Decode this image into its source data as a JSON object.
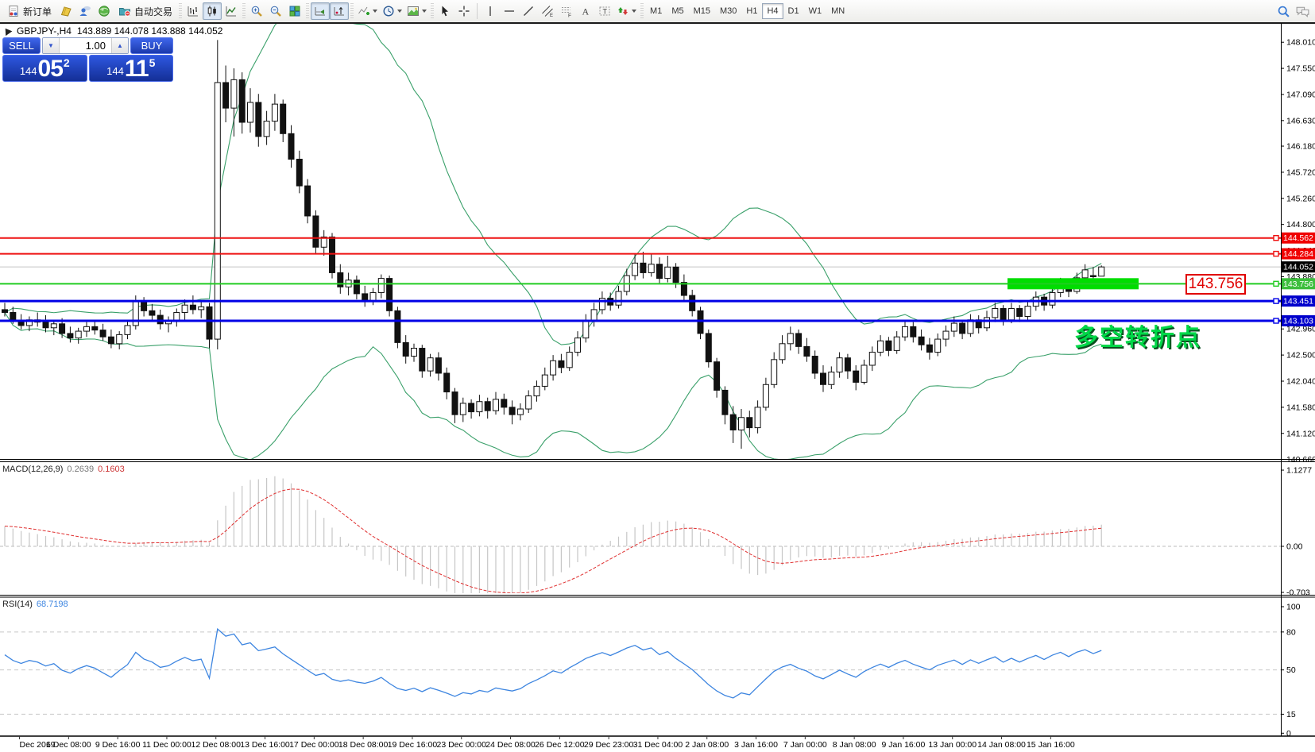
{
  "window": {
    "title_symbol": "GBPJPY-,H4",
    "title_ohlc": "143.889 144.078 143.888 144.052"
  },
  "toolbar": {
    "new_order": "新订单",
    "auto_trading": "自动交易",
    "timeframes": [
      "M1",
      "M5",
      "M15",
      "M30",
      "H1",
      "H4",
      "D1",
      "W1",
      "MN"
    ],
    "active_timeframe": "H4"
  },
  "trade_panel": {
    "sell_label": "SELL",
    "buy_label": "BUY",
    "volume": "1.00",
    "sell_price": {
      "prefix": "144",
      "big": "05",
      "sup": "2"
    },
    "buy_price": {
      "prefix": "144",
      "big": "11",
      "sup": "5"
    }
  },
  "indicator_labels": {
    "macd_name": "MACD(12,26,9)",
    "macd_v1": "0.2639",
    "macd_v2": "0.1603",
    "rsi_name": "RSI(14)",
    "rsi_value": "68.7198"
  },
  "annotation": {
    "turning_point": "多空转折点",
    "level_callout": "143.756"
  },
  "chart_data": {
    "type": "candlestick",
    "symbol": "GBPJPY-",
    "period": "H4",
    "title": "GBPJPY-,H4",
    "ohlc_current": {
      "open": 143.889,
      "high": 144.078,
      "low": 143.888,
      "close": 144.052
    },
    "current_price": 144.052,
    "y_ticks": [
      "148.010",
      "147.550",
      "147.090",
      "146.630",
      "146.180",
      "145.720",
      "145.260",
      "144.800",
      "144.340",
      "143.880",
      "143.420",
      "142.960",
      "142.500",
      "142.040",
      "141.580",
      "141.120",
      "140.660"
    ],
    "x_labels": [
      "Dec 2019",
      "6 Dec 08:00",
      "9 Dec 16:00",
      "11 Dec 00:00",
      "12 Dec 08:00",
      "13 Dec 16:00",
      "17 Dec 00:00",
      "18 Dec 08:00",
      "19 Dec 16:00",
      "23 Dec 00:00",
      "24 Dec 08:00",
      "26 Dec 12:00",
      "29 Dec 23:00",
      "31 Dec 04:00",
      "2 Jan 08:00",
      "3 Jan 16:00",
      "7 Jan 00:00",
      "8 Jan 08:00",
      "9 Jan 16:00",
      "13 Jan 00:00",
      "14 Jan 08:00",
      "15 Jan 16:00"
    ],
    "levels": [
      {
        "value": 144.562,
        "color": "#ee1111",
        "label_bg": "#f00000",
        "width": 2
      },
      {
        "value": 144.284,
        "color": "#ee1111",
        "label_bg": "#f00000",
        "width": 2
      },
      {
        "value": 143.756,
        "color": "#22cc22",
        "label_bg": "#3cbe3c",
        "width": 2,
        "highlight": true
      },
      {
        "value": 143.451,
        "color": "#0000e6",
        "label_bg": "#0000cc",
        "width": 3
      },
      {
        "value": 143.103,
        "color": "#0000e6",
        "label_bg": "#0000cc",
        "width": 3
      }
    ],
    "bollinger": {
      "period": 20,
      "deviation": 2,
      "color": "#3aa06a"
    },
    "macd": {
      "fast": 12,
      "slow": 26,
      "signal": 9,
      "value": 0.2639,
      "signal_value": 0.1603,
      "axis": [
        "1.1277",
        "0.00",
        "-0.703"
      ]
    },
    "rsi": {
      "period": 14,
      "value": 68.7198,
      "axis": [
        "100",
        "80",
        "50",
        "15",
        "0"
      ],
      "guides": [
        80,
        50,
        15
      ]
    },
    "candles": [
      [
        143.3,
        143.42,
        143.18,
        143.25
      ],
      [
        143.25,
        143.35,
        143.05,
        143.1
      ],
      [
        143.1,
        143.22,
        142.95,
        143.02
      ],
      [
        143.02,
        143.18,
        142.92,
        143.12
      ],
      [
        143.12,
        143.25,
        143.0,
        143.08
      ],
      [
        143.08,
        143.2,
        142.9,
        142.98
      ],
      [
        142.98,
        143.1,
        142.85,
        143.05
      ],
      [
        143.05,
        143.15,
        142.8,
        142.88
      ],
      [
        142.88,
        143.0,
        142.72,
        142.8
      ],
      [
        142.8,
        142.98,
        142.7,
        142.92
      ],
      [
        142.92,
        143.08,
        142.82,
        143.0
      ],
      [
        143.0,
        143.1,
        142.86,
        142.94
      ],
      [
        142.94,
        143.05,
        142.75,
        142.82
      ],
      [
        142.82,
        142.95,
        142.62,
        142.7
      ],
      [
        142.7,
        142.92,
        142.6,
        142.86
      ],
      [
        142.86,
        143.1,
        142.78,
        143.02
      ],
      [
        143.02,
        143.55,
        142.95,
        143.45
      ],
      [
        143.45,
        143.52,
        143.18,
        143.28
      ],
      [
        143.28,
        143.4,
        143.1,
        143.2
      ],
      [
        143.2,
        143.3,
        142.95,
        143.05
      ],
      [
        143.05,
        143.18,
        142.9,
        143.1
      ],
      [
        143.1,
        143.32,
        143.0,
        143.25
      ],
      [
        143.25,
        143.48,
        143.12,
        143.38
      ],
      [
        143.38,
        143.55,
        143.22,
        143.3
      ],
      [
        143.3,
        143.45,
        143.15,
        143.35
      ],
      [
        143.35,
        143.42,
        142.62,
        142.78
      ],
      [
        142.78,
        148.05,
        142.6,
        147.3
      ],
      [
        147.3,
        147.6,
        146.6,
        146.85
      ],
      [
        146.85,
        147.55,
        146.35,
        147.35
      ],
      [
        147.35,
        147.48,
        146.4,
        146.6
      ],
      [
        146.6,
        147.2,
        146.42,
        146.95
      ],
      [
        146.95,
        147.1,
        146.17,
        146.35
      ],
      [
        146.35,
        146.8,
        146.2,
        146.62
      ],
      [
        146.62,
        147.1,
        146.45,
        146.92
      ],
      [
        146.92,
        147.0,
        146.25,
        146.4
      ],
      [
        146.4,
        146.55,
        145.8,
        145.95
      ],
      [
        145.95,
        146.1,
        145.35,
        145.48
      ],
      [
        145.48,
        145.6,
        144.82,
        144.95
      ],
      [
        144.95,
        145.05,
        144.28,
        144.4
      ],
      [
        144.4,
        144.7,
        144.25,
        144.58
      ],
      [
        144.58,
        144.65,
        143.85,
        143.95
      ],
      [
        143.95,
        144.1,
        143.58,
        143.7
      ],
      [
        143.7,
        143.95,
        143.55,
        143.82
      ],
      [
        143.82,
        143.9,
        143.48,
        143.58
      ],
      [
        143.58,
        143.72,
        143.35,
        143.45
      ],
      [
        143.45,
        143.68,
        143.38,
        143.6
      ],
      [
        143.6,
        143.92,
        143.5,
        143.85
      ],
      [
        143.85,
        143.9,
        143.18,
        143.28
      ],
      [
        143.28,
        143.35,
        142.62,
        142.72
      ],
      [
        142.72,
        142.85,
        142.35,
        142.48
      ],
      [
        142.48,
        142.7,
        142.38,
        142.62
      ],
      [
        142.62,
        142.68,
        142.1,
        142.22
      ],
      [
        142.22,
        142.52,
        142.12,
        142.45
      ],
      [
        142.45,
        142.55,
        142.05,
        142.18
      ],
      [
        142.18,
        142.28,
        141.72,
        141.85
      ],
      [
        141.85,
        141.92,
        141.3,
        141.45
      ],
      [
        141.45,
        141.75,
        141.32,
        141.65
      ],
      [
        141.65,
        141.72,
        141.38,
        141.5
      ],
      [
        141.5,
        141.8,
        141.42,
        141.68
      ],
      [
        141.68,
        141.75,
        141.38,
        141.52
      ],
      [
        141.52,
        141.85,
        141.45,
        141.72
      ],
      [
        141.72,
        141.82,
        141.45,
        141.58
      ],
      [
        141.58,
        141.7,
        141.28,
        141.45
      ],
      [
        141.45,
        141.65,
        141.35,
        141.55
      ],
      [
        141.55,
        141.88,
        141.48,
        141.78
      ],
      [
        141.78,
        142.05,
        141.68,
        141.95
      ],
      [
        141.95,
        142.28,
        141.88,
        142.15
      ],
      [
        142.15,
        142.5,
        142.05,
        142.4
      ],
      [
        142.4,
        142.52,
        142.18,
        142.28
      ],
      [
        142.28,
        142.65,
        142.22,
        142.55
      ],
      [
        142.55,
        142.92,
        142.48,
        142.8
      ],
      [
        142.8,
        143.22,
        142.72,
        143.1
      ],
      [
        143.1,
        143.42,
        143.0,
        143.3
      ],
      [
        143.3,
        143.62,
        143.22,
        143.5
      ],
      [
        143.5,
        143.6,
        143.28,
        143.38
      ],
      [
        143.38,
        143.72,
        143.32,
        143.62
      ],
      [
        143.62,
        144.02,
        143.55,
        143.9
      ],
      [
        143.9,
        144.28,
        143.82,
        144.12
      ],
      [
        144.12,
        144.32,
        143.85,
        143.95
      ],
      [
        143.95,
        144.28,
        143.88,
        144.1
      ],
      [
        144.1,
        144.22,
        143.75,
        143.85
      ],
      [
        143.85,
        144.25,
        143.78,
        144.05
      ],
      [
        144.05,
        144.12,
        143.68,
        143.78
      ],
      [
        143.78,
        143.92,
        143.45,
        143.55
      ],
      [
        143.55,
        143.65,
        143.18,
        143.28
      ],
      [
        143.28,
        143.35,
        142.78,
        142.88
      ],
      [
        142.88,
        142.95,
        142.28,
        142.38
      ],
      [
        142.38,
        142.45,
        141.75,
        141.88
      ],
      [
        141.88,
        141.95,
        141.28,
        141.45
      ],
      [
        141.45,
        141.6,
        140.95,
        141.18
      ],
      [
        141.18,
        141.55,
        140.85,
        141.4
      ],
      [
        141.4,
        141.52,
        141.05,
        141.22
      ],
      [
        141.22,
        141.7,
        141.12,
        141.58
      ],
      [
        141.58,
        142.1,
        141.52,
        141.98
      ],
      [
        141.98,
        142.55,
        141.92,
        142.42
      ],
      [
        142.42,
        142.85,
        142.35,
        142.7
      ],
      [
        142.7,
        143.0,
        142.58,
        142.88
      ],
      [
        142.88,
        142.95,
        142.52,
        142.65
      ],
      [
        142.65,
        142.8,
        142.38,
        142.48
      ],
      [
        142.48,
        142.58,
        142.08,
        142.18
      ],
      [
        142.18,
        142.32,
        141.85,
        141.98
      ],
      [
        141.98,
        142.3,
        141.9,
        142.2
      ],
      [
        142.2,
        142.55,
        142.1,
        142.45
      ],
      [
        142.45,
        142.52,
        142.08,
        142.22
      ],
      [
        142.22,
        142.32,
        141.88,
        142.02
      ],
      [
        142.02,
        142.42,
        141.98,
        142.32
      ],
      [
        142.32,
        142.65,
        142.22,
        142.55
      ],
      [
        142.55,
        142.85,
        142.48,
        142.75
      ],
      [
        142.75,
        142.82,
        142.48,
        142.58
      ],
      [
        142.58,
        142.92,
        142.52,
        142.82
      ],
      [
        142.82,
        143.1,
        142.75,
        143.0
      ],
      [
        143.0,
        143.08,
        142.72,
        142.82
      ],
      [
        142.82,
        142.95,
        142.58,
        142.68
      ],
      [
        142.68,
        142.8,
        142.42,
        142.55
      ],
      [
        142.55,
        142.88,
        142.48,
        142.78
      ],
      [
        142.78,
        143.02,
        142.65,
        142.92
      ],
      [
        142.92,
        143.18,
        142.82,
        143.06
      ],
      [
        143.06,
        143.12,
        142.78,
        142.88
      ],
      [
        142.88,
        143.22,
        142.82,
        143.12
      ],
      [
        143.12,
        143.2,
        142.88,
        142.98
      ],
      [
        142.98,
        143.28,
        142.92,
        143.16
      ],
      [
        143.16,
        143.42,
        143.08,
        143.32
      ],
      [
        143.32,
        143.38,
        143.02,
        143.12
      ],
      [
        143.12,
        143.42,
        143.06,
        143.32
      ],
      [
        143.32,
        143.38,
        143.08,
        143.18
      ],
      [
        143.18,
        143.46,
        143.12,
        143.36
      ],
      [
        143.36,
        143.62,
        143.28,
        143.52
      ],
      [
        143.52,
        143.58,
        143.28,
        143.38
      ],
      [
        143.38,
        143.7,
        143.32,
        143.6
      ],
      [
        143.6,
        143.86,
        143.52,
        143.76
      ],
      [
        143.76,
        143.82,
        143.52,
        143.62
      ],
      [
        143.62,
        143.95,
        143.58,
        143.86
      ],
      [
        143.86,
        144.1,
        143.78,
        144.0
      ],
      [
        143.9,
        144.05,
        143.72,
        143.88
      ],
      [
        143.889,
        144.078,
        143.888,
        144.052
      ]
    ]
  }
}
